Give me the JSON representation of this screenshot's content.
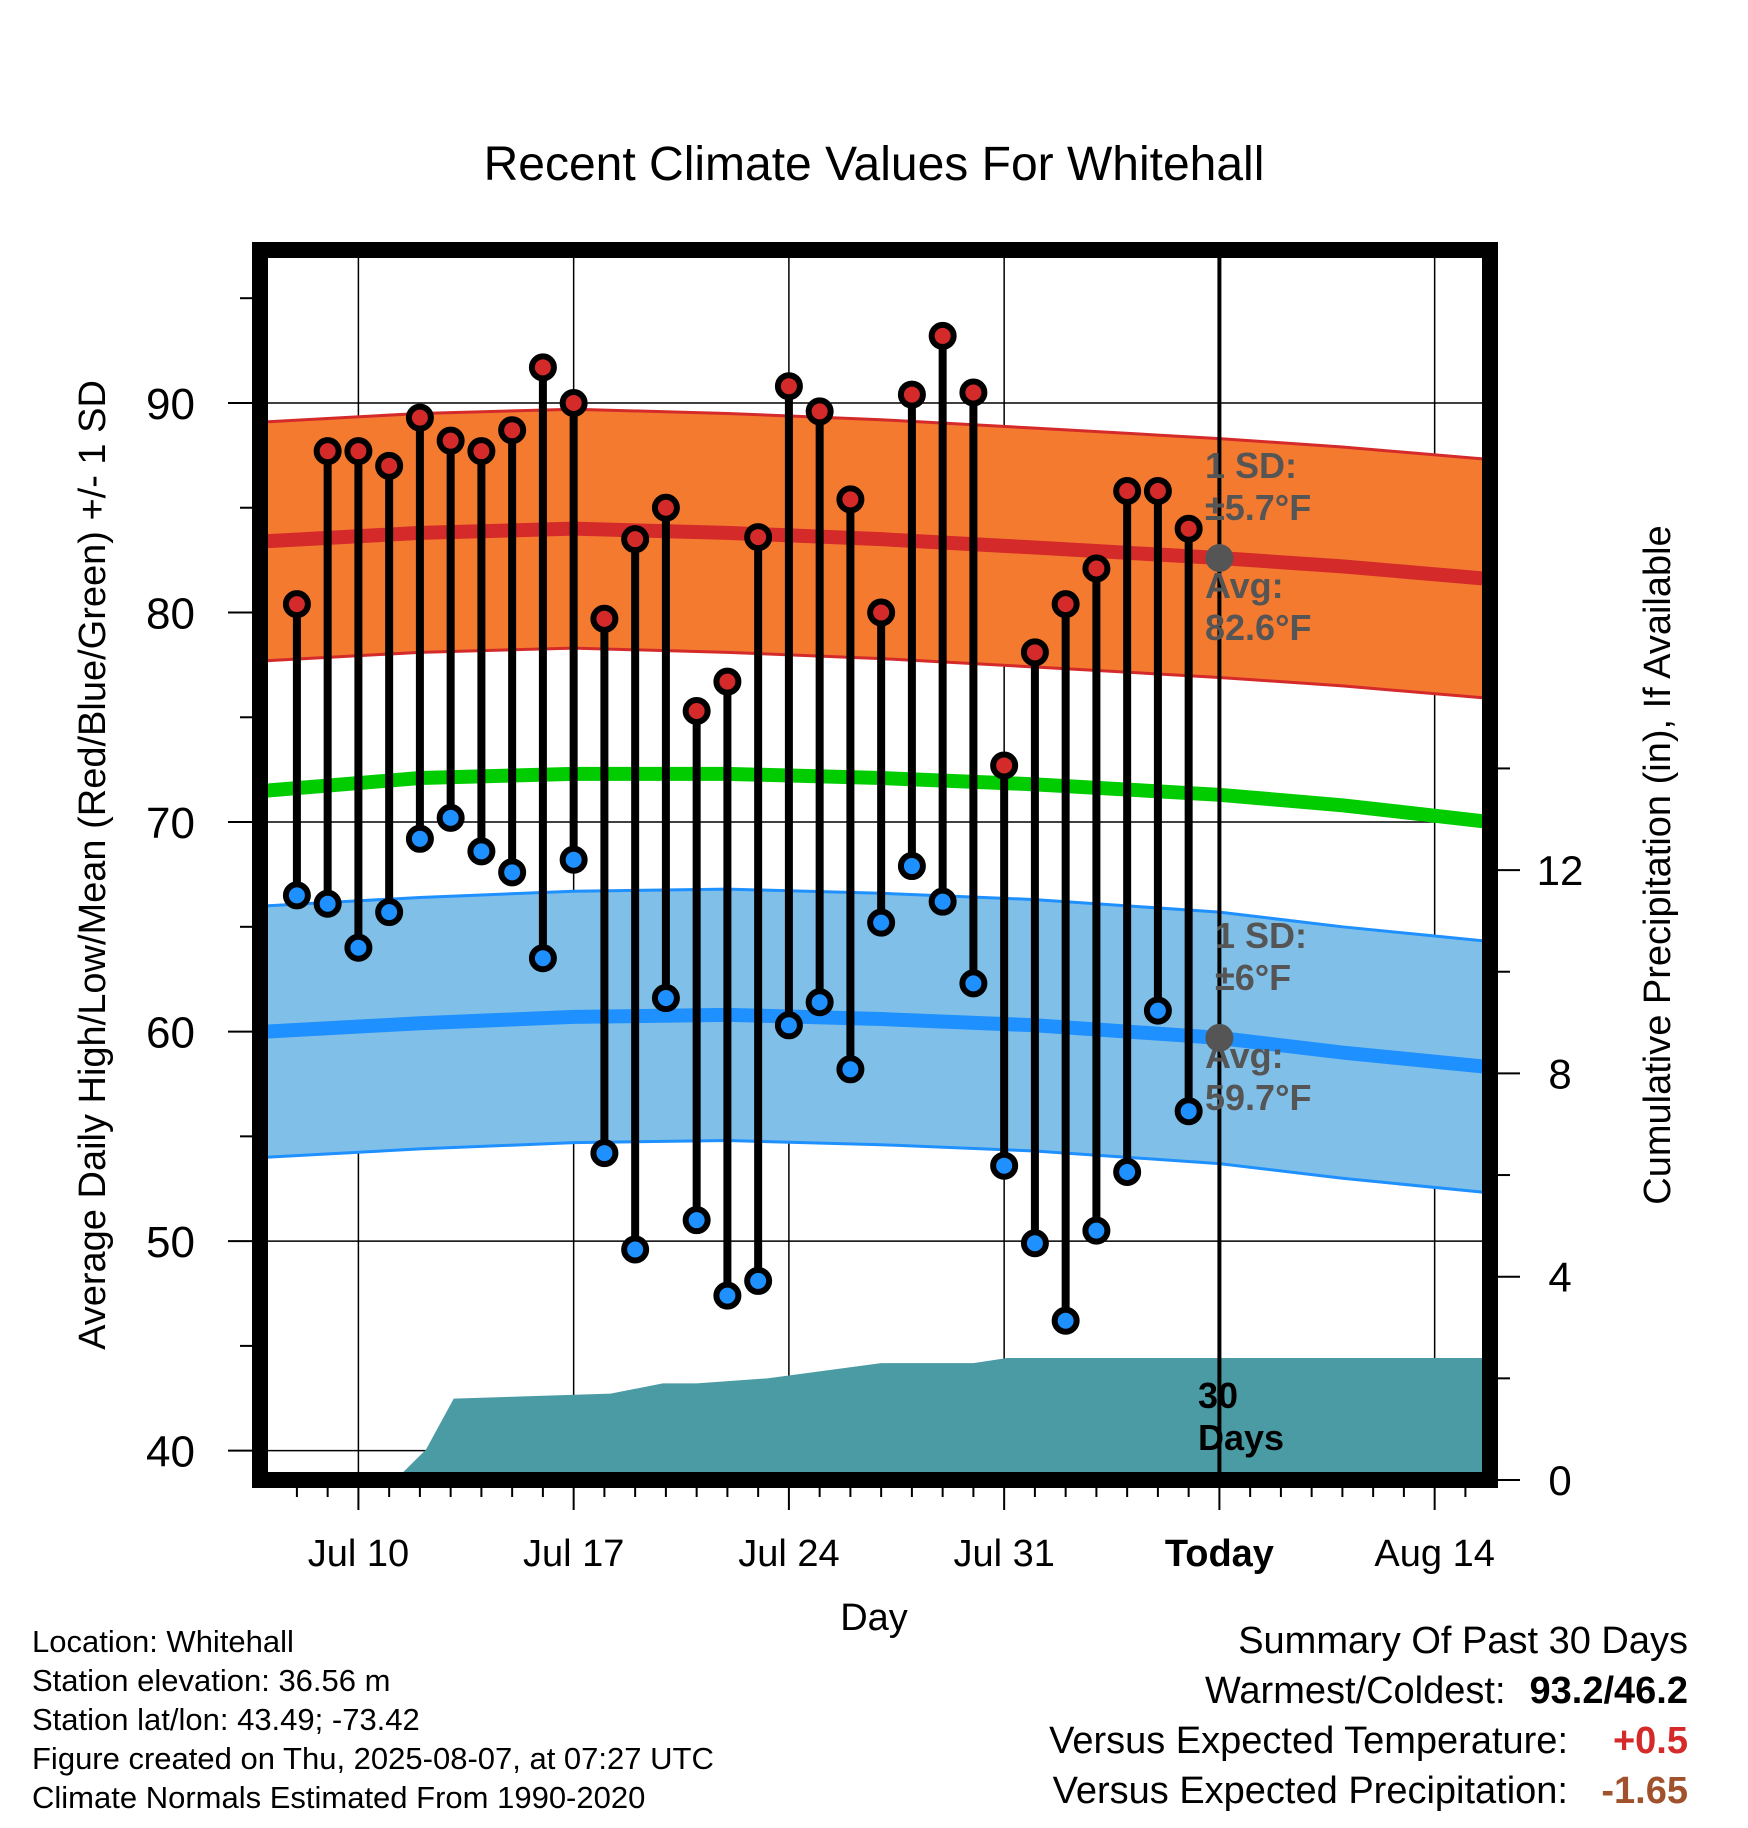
{
  "chart_data": {
    "type": "line",
    "title": "Recent Climate Values For Whitehall",
    "xlabel": "Day",
    "ylabel": "Average Daily High/Low/Mean (Red/Blue/Green) +/- 1 SD",
    "y2label": "Cumulative Precipitation (in), If Available",
    "ylim": [
      38.6,
      97.3
    ],
    "y2lim": [
      0,
      24.2
    ],
    "yticks": [
      "40",
      "50",
      "60",
      "70",
      "80",
      "90"
    ],
    "y2ticks": [
      "0",
      "4",
      "8",
      "12"
    ],
    "xticks": [
      "Jul 10",
      "Jul 17",
      "Jul 24",
      "Jul 31",
      "Today",
      "Aug 14"
    ],
    "xtick_days": [
      10,
      17,
      24,
      31,
      38,
      45
    ],
    "x_range": [
      6.8,
      46.8
    ],
    "today_day": 38,
    "grid": true,
    "obs_days": [
      8,
      9,
      10,
      11,
      12,
      13,
      14,
      15,
      16,
      17,
      18,
      19,
      20,
      21,
      22,
      23,
      24,
      25,
      26,
      27,
      28,
      29,
      30,
      31,
      32,
      33,
      34,
      35,
      36,
      37
    ],
    "highs": [
      80.4,
      87.7,
      87.7,
      87.0,
      89.3,
      88.2,
      87.7,
      88.7,
      91.7,
      90.0,
      79.7,
      83.5,
      85.0,
      75.3,
      76.7,
      83.6,
      90.8,
      89.6,
      85.4,
      80.0,
      90.4,
      93.2,
      90.5,
      72.7,
      78.1,
      80.4,
      82.1,
      85.8,
      85.8,
      84.0
    ],
    "lows": [
      66.5,
      66.1,
      64.0,
      65.7,
      69.2,
      70.2,
      68.6,
      67.6,
      63.5,
      68.2,
      54.2,
      49.6,
      61.6,
      51.0,
      47.4,
      48.1,
      60.3,
      61.4,
      58.2,
      65.2,
      67.9,
      66.2,
      62.3,
      53.6,
      49.9,
      46.2,
      50.5,
      53.3,
      61.0,
      56.2
    ],
    "normal_days": [
      7,
      12,
      17,
      22,
      27,
      32,
      38,
      42,
      46.8
    ],
    "normal_high": [
      83.4,
      83.8,
      84.0,
      83.8,
      83.5,
      83.1,
      82.6,
      82.2,
      81.6
    ],
    "normal_mean": [
      71.5,
      72.1,
      72.3,
      72.3,
      72.1,
      71.8,
      71.3,
      70.8,
      70.0
    ],
    "normal_low": [
      60.0,
      60.4,
      60.7,
      60.8,
      60.6,
      60.3,
      59.7,
      59.0,
      58.3
    ],
    "high_sd": 5.7,
    "low_sd": 6.0,
    "precip_days": [
      11.2,
      12.2,
      13.1,
      18.2,
      19.9,
      21.0,
      23.3,
      27.0,
      27.9,
      30.0,
      31.1,
      32.0,
      46.8
    ],
    "precip": [
      0,
      0.6,
      1.6,
      1.7,
      1.9,
      1.9,
      2.0,
      2.3,
      2.3,
      2.3,
      2.4,
      2.4,
      2.4
    ],
    "annotations": {
      "high_sd": [
        "1 SD:",
        "±5.7°F"
      ],
      "high_avg": [
        "Avg:",
        "82.6°F"
      ],
      "low_sd": [
        "1 SD:",
        "±6°F"
      ],
      "low_avg": [
        "Avg:",
        "59.7°F"
      ],
      "precip_window": [
        "30",
        "Days"
      ]
    },
    "colors": {
      "high_band": "#f47a30",
      "high_line": "#d42a2a",
      "mean_line": "#00cc00",
      "low_band": "#80c0e8",
      "low_line": "#1e90ff",
      "precip": "#4a9ba4",
      "high_marker": "#d42a2a",
      "low_marker": "#1e90ff",
      "annotation": "#555555"
    }
  },
  "info": {
    "location": "Location: Whitehall",
    "elevation": "Station elevation: 36.56 m",
    "latlon": "Station lat/lon: 43.49; -73.42",
    "created": "Figure created on Thu, 2025-08-07, at 07:27 UTC",
    "normals": "Climate Normals Estimated From 1990-2020"
  },
  "summary": {
    "title": "Summary Of Past 30 Days",
    "warmest_coldest_label": "Warmest/Coldest:",
    "warmest_coldest_value": "93.2/46.2",
    "temp_label": "Versus Expected Temperature:",
    "temp_value": "+0.5",
    "temp_color": "#d42a2a",
    "precip_label": "Versus Expected Precipitation:",
    "precip_value": "-1.65",
    "precip_color": "#a0522d"
  }
}
